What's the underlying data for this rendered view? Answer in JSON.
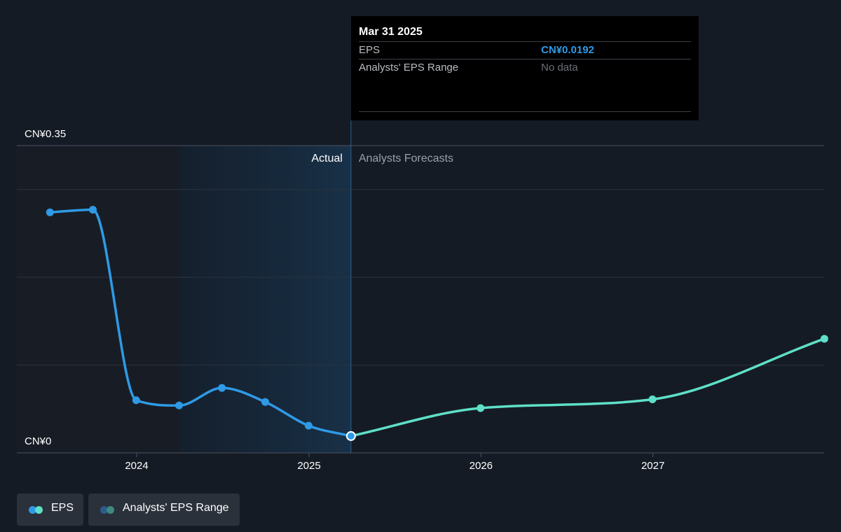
{
  "chart_data": {
    "type": "line",
    "y_axis": {
      "ticks": [
        "CN¥0.35",
        "CN¥0"
      ],
      "ylim": [
        0,
        0.35
      ]
    },
    "x_axis": {
      "ticks": [
        "2024",
        "2025",
        "2026",
        "2027"
      ]
    },
    "regions": {
      "actual_label": "Actual",
      "forecast_label": "Analysts Forecasts"
    },
    "series": [
      {
        "name": "EPS",
        "kind": "actual",
        "color": "#2f9ae6",
        "points": [
          {
            "x": "2023-07-01",
            "y": 0.274
          },
          {
            "x": "2023-09-30",
            "y": 0.277
          },
          {
            "x": "2023-12-31",
            "y": 0.06
          },
          {
            "x": "2024-03-31",
            "y": 0.054
          },
          {
            "x": "2024-06-30",
            "y": 0.074
          },
          {
            "x": "2024-09-30",
            "y": 0.058
          },
          {
            "x": "2024-12-31",
            "y": 0.031
          },
          {
            "x": "2025-03-31",
            "y": 0.0192
          }
        ]
      },
      {
        "name": "EPS",
        "kind": "forecast",
        "color": "#5ee0c8",
        "points": [
          {
            "x": "2025-03-31",
            "y": 0.0192
          },
          {
            "x": "2025-12-31",
            "y": 0.051
          },
          {
            "x": "2026-12-31",
            "y": 0.061
          },
          {
            "x": "2027-12-31",
            "y": 0.13
          }
        ]
      }
    ],
    "highlight": {
      "x": "2025-03-31"
    },
    "grid": true,
    "legend": [
      "EPS",
      "Analysts' EPS Range"
    ]
  },
  "tooltip": {
    "date": "Mar 31 2025",
    "rows": [
      {
        "label": "EPS",
        "value": "CN¥0.0192"
      },
      {
        "label": "Analysts' EPS Range",
        "value": "No data"
      }
    ]
  },
  "legend": {
    "eps_label": "EPS",
    "range_label": "Analysts' EPS Range",
    "colors": {
      "eps_a": "#2f9ae6",
      "eps_b": "#5ee0c8",
      "range_a": "#2b5e8a",
      "range_b": "#3f8a80"
    }
  }
}
